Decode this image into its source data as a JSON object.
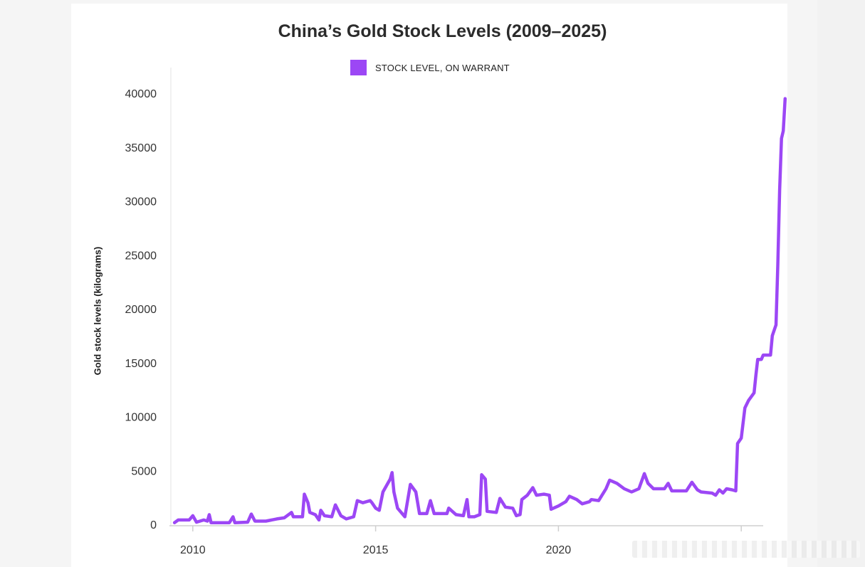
{
  "chart_data": {
    "type": "line",
    "title": "China’s Gold Stock Levels (2009–2025)",
    "ylabel": "Gold stock levels (kilograms)",
    "xlabel": "",
    "ylim": [
      0,
      40000
    ],
    "xlim": [
      2009.4,
      2025.6
    ],
    "y_ticks": [
      0,
      5000,
      10000,
      15000,
      20000,
      25000,
      30000,
      35000,
      40000
    ],
    "x_ticks": [
      2010,
      2015,
      2020
    ],
    "grid": false,
    "legend_position": "top-center",
    "series": [
      {
        "name": "STOCK LEVEL, ON WARRANT",
        "color": "#9c47f5",
        "points": [
          [
            2009.5,
            150
          ],
          [
            2009.6,
            400
          ],
          [
            2009.9,
            400
          ],
          [
            2010.0,
            800
          ],
          [
            2010.1,
            200
          ],
          [
            2010.3,
            400
          ],
          [
            2010.4,
            300
          ],
          [
            2010.45,
            900
          ],
          [
            2010.5,
            150
          ],
          [
            2011.0,
            150
          ],
          [
            2011.1,
            700
          ],
          [
            2011.15,
            150
          ],
          [
            2011.5,
            200
          ],
          [
            2011.6,
            950
          ],
          [
            2011.7,
            300
          ],
          [
            2012.0,
            300
          ],
          [
            2012.3,
            500
          ],
          [
            2012.5,
            600
          ],
          [
            2012.7,
            1100
          ],
          [
            2012.75,
            700
          ],
          [
            2013.0,
            700
          ],
          [
            2013.05,
            2800
          ],
          [
            2013.15,
            2000
          ],
          [
            2013.2,
            1100
          ],
          [
            2013.35,
            900
          ],
          [
            2013.45,
            400
          ],
          [
            2013.5,
            1300
          ],
          [
            2013.6,
            800
          ],
          [
            2013.8,
            700
          ],
          [
            2013.9,
            1800
          ],
          [
            2014.05,
            800
          ],
          [
            2014.2,
            500
          ],
          [
            2014.4,
            700
          ],
          [
            2014.5,
            2200
          ],
          [
            2014.65,
            2000
          ],
          [
            2014.85,
            2200
          ],
          [
            2014.9,
            2000
          ],
          [
            2015.0,
            1500
          ],
          [
            2015.1,
            1300
          ],
          [
            2015.2,
            3000
          ],
          [
            2015.4,
            4200
          ],
          [
            2015.45,
            4800
          ],
          [
            2015.5,
            3000
          ],
          [
            2015.6,
            1500
          ],
          [
            2015.8,
            700
          ],
          [
            2015.95,
            3700
          ],
          [
            2016.1,
            3000
          ],
          [
            2016.2,
            1000
          ],
          [
            2016.4,
            1000
          ],
          [
            2016.5,
            2200
          ],
          [
            2016.6,
            1000
          ],
          [
            2016.95,
            1000
          ],
          [
            2017.0,
            1500
          ],
          [
            2017.2,
            900
          ],
          [
            2017.4,
            800
          ],
          [
            2017.5,
            2300
          ],
          [
            2017.55,
            700
          ],
          [
            2017.7,
            700
          ],
          [
            2017.85,
            900
          ],
          [
            2017.9,
            4600
          ],
          [
            2018.0,
            4200
          ],
          [
            2018.05,
            1200
          ],
          [
            2018.3,
            1100
          ],
          [
            2018.4,
            2400
          ],
          [
            2018.55,
            1600
          ],
          [
            2018.75,
            1500
          ],
          [
            2018.85,
            800
          ],
          [
            2018.95,
            900
          ],
          [
            2019.0,
            2300
          ],
          [
            2019.15,
            2700
          ],
          [
            2019.3,
            3400
          ],
          [
            2019.4,
            2700
          ],
          [
            2019.6,
            2800
          ],
          [
            2019.75,
            2700
          ],
          [
            2019.8,
            1400
          ],
          [
            2020.0,
            1700
          ],
          [
            2020.2,
            2100
          ],
          [
            2020.3,
            2600
          ],
          [
            2020.5,
            2300
          ],
          [
            2020.65,
            1900
          ],
          [
            2020.85,
            2100
          ],
          [
            2020.9,
            2300
          ],
          [
            2021.1,
            2200
          ],
          [
            2021.3,
            3300
          ],
          [
            2021.4,
            4100
          ],
          [
            2021.6,
            3800
          ],
          [
            2021.8,
            3300
          ],
          [
            2022.0,
            3000
          ],
          [
            2022.2,
            3300
          ],
          [
            2022.35,
            4700
          ],
          [
            2022.45,
            3800
          ],
          [
            2022.6,
            3300
          ],
          [
            2022.9,
            3300
          ],
          [
            2023.0,
            3800
          ],
          [
            2023.1,
            3100
          ],
          [
            2023.5,
            3100
          ],
          [
            2023.65,
            3900
          ],
          [
            2023.8,
            3200
          ],
          [
            2023.9,
            3000
          ],
          [
            2024.2,
            2900
          ],
          [
            2024.3,
            2700
          ],
          [
            2024.4,
            3200
          ],
          [
            2024.5,
            2900
          ],
          [
            2024.6,
            3300
          ],
          [
            2024.75,
            3200
          ],
          [
            2024.85,
            3100
          ],
          [
            2024.9,
            7500
          ],
          [
            2025.0,
            8000
          ],
          [
            2025.1,
            10800
          ],
          [
            2025.2,
            11500
          ],
          [
            2025.35,
            12200
          ],
          [
            2025.4,
            13800
          ],
          [
            2025.45,
            15300
          ],
          [
            2025.55,
            15300
          ],
          [
            2025.6,
            15700
          ],
          [
            2025.8,
            15700
          ],
          [
            2025.85,
            17500
          ],
          [
            2025.95,
            18500
          ],
          [
            2026.0,
            24000
          ],
          [
            2026.05,
            31000
          ],
          [
            2026.1,
            35800
          ],
          [
            2026.15,
            36500
          ],
          [
            2026.2,
            39500
          ]
        ]
      }
    ]
  }
}
